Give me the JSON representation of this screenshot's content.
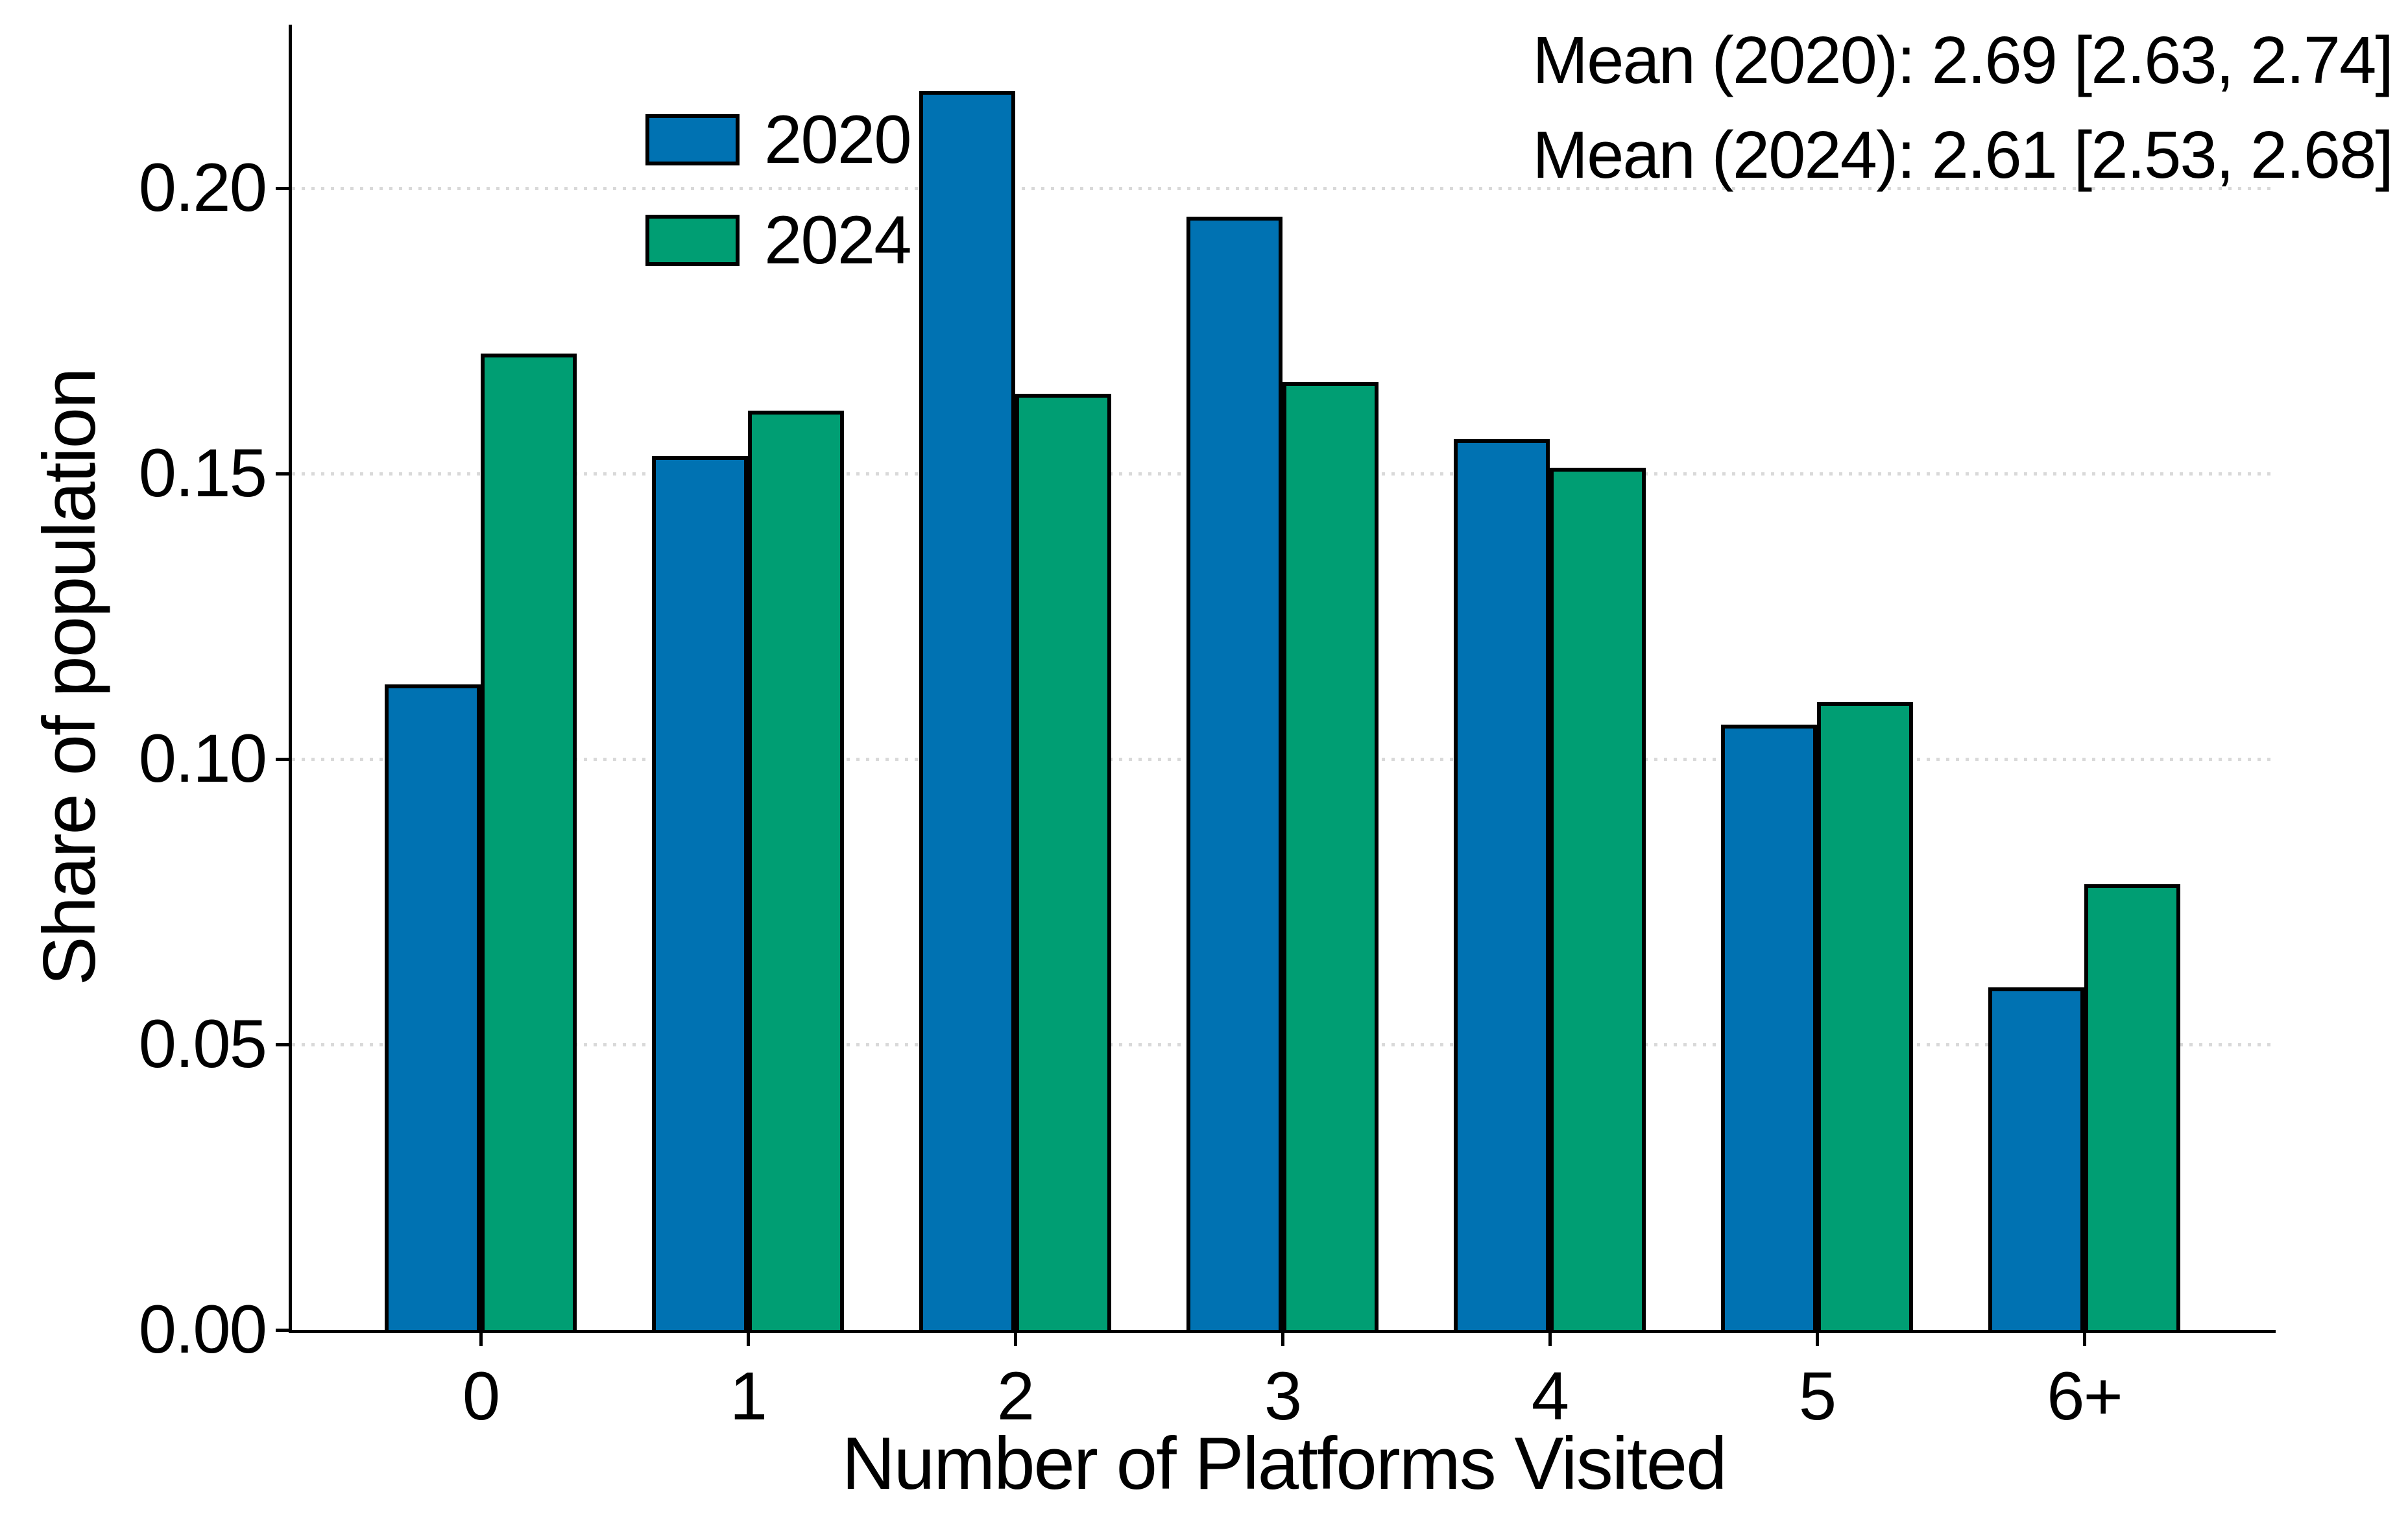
{
  "chart_data": {
    "type": "bar",
    "title": "",
    "categories": [
      "0",
      "1",
      "2",
      "3",
      "4",
      "5",
      "6+"
    ],
    "series": [
      {
        "name": "2020",
        "color": "#0072B2",
        "values": [
          0.113,
          0.153,
          0.217,
          0.195,
          0.156,
          0.106,
          0.06
        ]
      },
      {
        "name": "2024",
        "color": "#009E73",
        "values": [
          0.171,
          0.161,
          0.164,
          0.166,
          0.151,
          0.11,
          0.078
        ]
      }
    ],
    "xlabel": "Number of Platforms Visited",
    "ylabel": "Share of population",
    "yticks": [
      {
        "value": 0.0,
        "label": "0.00"
      },
      {
        "value": 0.05,
        "label": "0.05"
      },
      {
        "value": 0.1,
        "label": "0.10"
      },
      {
        "value": 0.15,
        "label": "0.15"
      },
      {
        "value": 0.2,
        "label": "0.20"
      }
    ],
    "ylim": [
      0,
      0.2286
    ],
    "grid": {
      "axis": "y",
      "style": "dotted",
      "color": "#d9d9d9"
    },
    "legend": {
      "position": "upper left",
      "entries": [
        "2020",
        "2024"
      ]
    },
    "annotation": {
      "align": "right",
      "lines": [
        "Mean (2020): 2.69 [2.63, 2.74]",
        "Mean (2024): 2.61 [2.53, 2.68]"
      ]
    },
    "bar_edge_color": "#000000",
    "background": "#ffffff",
    "text_color": "#000000"
  }
}
